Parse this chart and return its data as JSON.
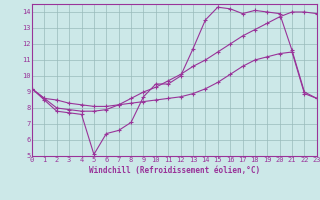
{
  "xlabel": "Windchill (Refroidissement éolien,°C)",
  "xlim": [
    0,
    23
  ],
  "ylim": [
    5,
    14.5
  ],
  "xticks": [
    0,
    1,
    2,
    3,
    4,
    5,
    6,
    7,
    8,
    9,
    10,
    11,
    12,
    13,
    14,
    15,
    16,
    17,
    18,
    19,
    20,
    21,
    22,
    23
  ],
  "yticks": [
    5,
    6,
    7,
    8,
    9,
    10,
    11,
    12,
    13,
    14
  ],
  "bg_color": "#cce8e8",
  "line_color": "#993399",
  "grid_color": "#99bbbb",
  "line1_x": [
    0,
    1,
    2,
    3,
    4,
    5,
    6,
    7,
    8,
    9,
    10,
    11,
    12,
    13,
    14,
    15,
    16,
    17,
    18,
    19,
    20,
    21,
    22,
    23
  ],
  "line1_y": [
    9.2,
    8.5,
    7.8,
    7.7,
    7.6,
    5.1,
    6.4,
    6.6,
    7.1,
    8.7,
    9.5,
    9.5,
    10.0,
    11.7,
    13.5,
    14.3,
    14.2,
    13.9,
    14.1,
    14.0,
    13.9,
    11.6,
    9.0,
    8.6
  ],
  "line2_x": [
    0,
    1,
    2,
    3,
    4,
    5,
    6,
    7,
    8,
    9,
    10,
    11,
    12,
    13,
    14,
    15,
    16,
    17,
    18,
    19,
    20,
    21,
    22,
    23
  ],
  "line2_y": [
    9.2,
    8.6,
    8.0,
    7.9,
    7.8,
    7.8,
    7.9,
    8.2,
    8.6,
    9.0,
    9.3,
    9.7,
    10.1,
    10.6,
    11.0,
    11.5,
    12.0,
    12.5,
    12.9,
    13.3,
    13.7,
    14.0,
    14.0,
    13.9
  ],
  "line3_x": [
    0,
    1,
    2,
    3,
    4,
    5,
    6,
    7,
    8,
    9,
    10,
    11,
    12,
    13,
    14,
    15,
    16,
    17,
    18,
    19,
    20,
    21,
    22,
    23
  ],
  "line3_y": [
    9.2,
    8.6,
    8.5,
    8.3,
    8.2,
    8.1,
    8.1,
    8.2,
    8.3,
    8.4,
    8.5,
    8.6,
    8.7,
    8.9,
    9.2,
    9.6,
    10.1,
    10.6,
    11.0,
    11.2,
    11.4,
    11.5,
    8.9,
    8.6
  ]
}
